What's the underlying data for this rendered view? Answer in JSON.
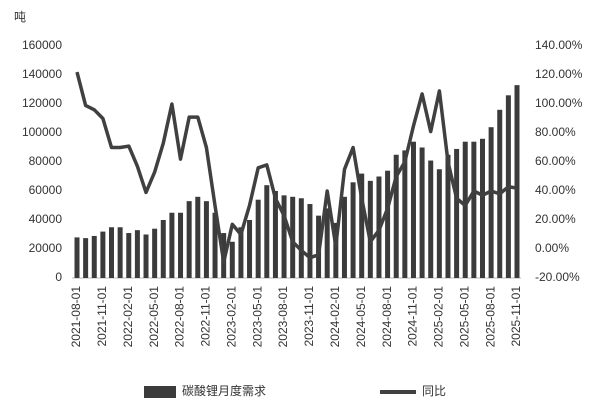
{
  "chart_data": {
    "type": "bar_line",
    "ylabel": "吨",
    "categories": [
      "2021-08-01",
      null,
      null,
      "2021-11-01",
      null,
      null,
      "2022-02-01",
      null,
      null,
      "2022-05-01",
      null,
      null,
      "2022-08-01",
      null,
      null,
      "2022-11-01",
      null,
      null,
      "2023-02-01",
      null,
      null,
      "2023-05-01",
      null,
      null,
      "2023-08-01",
      null,
      null,
      "2023-11-01",
      null,
      null,
      "2024-02-01",
      null,
      null,
      "2024-05-01",
      null,
      null,
      "2024-08-01",
      null,
      null,
      "2024-11-01",
      null,
      null,
      "2025-02-01",
      null,
      null,
      "2025-05-01",
      null,
      null,
      "2025-08-01",
      null,
      null,
      "2025-11-01"
    ],
    "series": [
      {
        "name": "碳酸锂月度需求",
        "color": "#3b3b3b",
        "type": "bar",
        "values": [
          28000,
          27500,
          29000,
          32000,
          35000,
          35000,
          31000,
          33000,
          30000,
          34000,
          40000,
          45000,
          45000,
          53000,
          56000,
          53000,
          45000,
          31000,
          25000,
          35000,
          40000,
          54000,
          64000,
          60000,
          57000,
          56000,
          55000,
          51000,
          43000,
          48000,
          38000,
          56000,
          66000,
          72000,
          67000,
          70000,
          74000,
          85000,
          88000,
          94000,
          90000,
          81000,
          75000,
          85000,
          89000,
          94000,
          94000,
          96000,
          104000,
          116000,
          126000,
          133000
        ]
      },
      {
        "name": "同比",
        "color": "#404040",
        "type": "line",
        "axis": "y2",
        "values": [
          122,
          99,
          96,
          90,
          70,
          70,
          71,
          57,
          39,
          53,
          73,
          100,
          62,
          91,
          91,
          70,
          30,
          -9,
          17,
          10,
          30,
          56,
          58,
          35,
          23,
          5,
          -1,
          -6,
          -4,
          40,
          2,
          55,
          70,
          35,
          5,
          13,
          28,
          50,
          60,
          85,
          107,
          81,
          109,
          60,
          35,
          30,
          40,
          37,
          40,
          38,
          43,
          42
        ]
      }
    ],
    "ylim": [
      0,
      160000
    ],
    "yticks": [
      0,
      20000,
      40000,
      60000,
      80000,
      100000,
      120000,
      140000,
      160000
    ],
    "y2lim": [
      -20,
      140
    ],
    "y2ticks": [
      {
        "value": -20,
        "label": "-20.00%"
      },
      {
        "value": 0,
        "label": "0.00%"
      },
      {
        "value": 20,
        "label": "20.00%"
      },
      {
        "value": 40,
        "label": "40.00%"
      },
      {
        "value": 60,
        "label": "60.00%"
      },
      {
        "value": 80,
        "label": "80.00%"
      },
      {
        "value": 100,
        "label": "100.00%"
      },
      {
        "value": 120,
        "label": "120.00%"
      },
      {
        "value": 140,
        "label": "140.00%"
      }
    ],
    "legend": "bottom"
  }
}
